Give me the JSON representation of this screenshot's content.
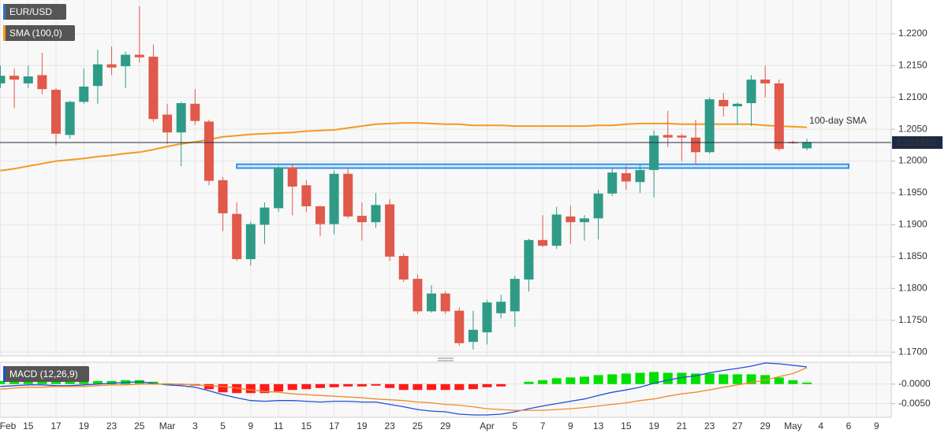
{
  "chart_data": [
    {
      "type": "candlestick",
      "title": "EUR/USD",
      "title_color": "#2f6fd6",
      "categories": [
        "Feb",
        null,
        "15",
        null,
        "17",
        null,
        "19",
        null,
        "23",
        null,
        "25",
        null,
        "Mar",
        null,
        "3",
        null,
        "5",
        null,
        "9",
        null,
        "11",
        null,
        "15",
        null,
        "17",
        null,
        "19",
        null,
        "23",
        null,
        "25",
        null,
        "29",
        null,
        null,
        "Apr",
        null,
        "5",
        null,
        "7",
        null,
        "9",
        null,
        "13",
        null,
        "15",
        null,
        "19",
        null,
        "21",
        null,
        "23",
        null,
        "27",
        null,
        "29",
        null,
        "May",
        null,
        "4",
        null,
        "6",
        null,
        "9"
      ],
      "open": [
        1.2122,
        1.2134,
        1.2122,
        1.2135,
        1.2112,
        1.2041,
        1.2093,
        1.2118,
        1.2152,
        1.2149,
        1.2167,
        1.2164,
        1.2073,
        1.2045,
        1.209,
        1.2062,
        1.197,
        1.1917,
        1.1846,
        1.19,
        1.1926,
        1.199,
        1.1962,
        1.1929,
        1.1901,
        1.198,
        1.1914,
        1.1904,
        1.1932,
        1.1851,
        1.1815,
        1.1764,
        1.1792,
        1.1765,
        1.1716,
        1.1731,
        1.1761,
        1.1764,
        1.1814,
        1.1876,
        1.1867,
        1.1913,
        1.1904,
        1.191,
        1.1949,
        1.1981,
        1.1967,
        1.1986,
        1.2041,
        1.204,
        1.2037,
        1.2014,
        1.2096,
        1.2086,
        1.2091,
        1.2128,
        1.2122,
        1.203,
        1.202,
        null,
        null,
        null,
        null,
        null
      ],
      "high": [
        1.215,
        1.2145,
        1.215,
        1.217,
        1.2115,
        1.2095,
        1.2145,
        1.2175,
        1.218,
        1.2172,
        1.2243,
        1.2183,
        1.209,
        1.2093,
        1.2113,
        1.2065,
        1.1975,
        1.1935,
        1.1905,
        1.1935,
        1.1992,
        1.1995,
        1.197,
        1.193,
        1.1985,
        1.199,
        1.1935,
        1.195,
        1.194,
        1.1855,
        1.1822,
        1.1805,
        1.1795,
        1.177,
        1.1765,
        1.1782,
        1.179,
        1.182,
        1.1878,
        1.1915,
        1.1928,
        1.193,
        1.1915,
        1.1955,
        1.199,
        1.1993,
        1.1995,
        1.2048,
        1.2079,
        1.2043,
        1.2065,
        1.21,
        1.2107,
        1.2092,
        1.2135,
        1.215,
        1.2128,
        1.2032,
        1.2035,
        null,
        null,
        null,
        null,
        null
      ],
      "low": [
        1.2115,
        1.2083,
        1.2115,
        1.2105,
        1.2025,
        1.2035,
        1.209,
        1.209,
        1.2135,
        1.2115,
        1.2155,
        1.2062,
        1.2027,
        1.1992,
        1.2057,
        1.1962,
        1.189,
        1.1843,
        1.1836,
        1.187,
        1.192,
        1.1915,
        1.192,
        1.1882,
        1.1885,
        1.191,
        1.1875,
        1.1895,
        1.1843,
        1.181,
        1.176,
        1.1762,
        1.176,
        1.171,
        1.1704,
        1.1712,
        1.1753,
        1.174,
        1.1795,
        1.1865,
        1.1862,
        1.187,
        1.1875,
        1.1877,
        1.1945,
        1.1955,
        1.195,
        1.1943,
        1.2022,
        1.2,
        1.1995,
        1.2012,
        1.207,
        1.2057,
        1.2055,
        1.21,
        1.2016,
        1.2027,
        1.2017,
        null,
        null,
        null,
        null,
        null
      ],
      "close": [
        1.2134,
        1.2128,
        1.2133,
        1.2113,
        1.2043,
        1.2093,
        1.2117,
        1.2152,
        1.2147,
        1.2167,
        1.2163,
        1.2066,
        1.2045,
        1.2091,
        1.2063,
        1.1969,
        1.1918,
        1.1846,
        1.1901,
        1.1927,
        1.199,
        1.196,
        1.1929,
        1.1901,
        1.198,
        1.1913,
        1.1904,
        1.1931,
        1.185,
        1.1814,
        1.1764,
        1.1792,
        1.1764,
        1.1714,
        1.1735,
        1.1778,
        1.1779,
        1.1815,
        1.1876,
        1.1867,
        1.1916,
        1.1904,
        1.191,
        1.1949,
        1.1982,
        1.1968,
        1.1986,
        1.204,
        1.2037,
        1.2037,
        1.2014,
        1.2097,
        1.2086,
        1.209,
        1.2128,
        1.2122,
        1.2019,
        1.2028,
        1.203,
        null,
        null,
        null,
        null,
        null
      ],
      "up_color": "#2f9b86",
      "down_color": "#e0594a",
      "series": [
        {
          "name": "SMA (100,0)",
          "color": "#f39a1e",
          "values": [
            1.1985,
            1.1988,
            1.1992,
            1.1996,
            1.2,
            1.2002,
            1.2004,
            1.2007,
            1.2009,
            1.2012,
            1.2014,
            1.2018,
            1.2023,
            1.2027,
            1.203,
            1.2034,
            1.2038,
            1.204,
            1.2042,
            1.2043,
            1.2044,
            1.2045,
            1.2047,
            1.2048,
            1.2049,
            1.2052,
            1.2055,
            1.2058,
            1.2059,
            1.206,
            1.206,
            1.2059,
            1.2058,
            1.2058,
            1.2056,
            1.2056,
            1.2056,
            1.2055,
            1.2055,
            1.2055,
            1.2055,
            1.2055,
            1.2055,
            1.2056,
            1.2056,
            1.2058,
            1.2059,
            1.2059,
            1.2059,
            1.2058,
            1.2058,
            1.2058,
            1.2058,
            1.2058,
            1.2058,
            1.2056,
            1.2055,
            1.2054,
            1.2053,
            null,
            null,
            null,
            null,
            null
          ]
        }
      ],
      "annotation": "100-day SMA",
      "last_price": {
        "value": 1.20291,
        "label": "1.202910"
      },
      "zone": {
        "y": [
          1.1989,
          1.1995
        ],
        "x": [
          17,
          61
        ],
        "color": "#2b8ff0"
      },
      "ylim": [
        1.1694,
        1.2253
      ],
      "yticks": [
        {
          "value": 1.17,
          "label": "1.1700"
        },
        {
          "value": 1.175,
          "label": "1.1750"
        },
        {
          "value": 1.18,
          "label": "1.1800"
        },
        {
          "value": 1.185,
          "label": "1.1850"
        },
        {
          "value": 1.19,
          "label": "1.1900"
        },
        {
          "value": 1.195,
          "label": "1.1950"
        },
        {
          "value": 1.2,
          "label": "1.2000"
        },
        {
          "value": 1.205,
          "label": "1.2050"
        },
        {
          "value": 1.21,
          "label": "1.2100"
        },
        {
          "value": 1.215,
          "label": "1.2150"
        },
        {
          "value": 1.22,
          "label": "1.2200"
        }
      ],
      "grid": true
    },
    {
      "type": "macd",
      "title": "MACD (12,26,9)",
      "histogram": [
        0.0008,
        0.0008,
        0.0008,
        0.0008,
        0.0008,
        0.0008,
        0.0008,
        0.0008,
        0.0008,
        0.001,
        0.001,
        0.0006,
        0.0002,
        -0.0002,
        -0.0004,
        -0.0013,
        -0.0021,
        -0.0023,
        -0.0023,
        -0.0023,
        -0.0019,
        -0.0015,
        -0.0013,
        -0.001,
        -0.0008,
        -0.0006,
        -0.0006,
        -0.0004,
        -0.001,
        -0.0015,
        -0.0015,
        -0.0015,
        -0.0015,
        -0.0015,
        -0.0013,
        -0.0008,
        -0.0006,
        0,
        0.0006,
        0.001,
        0.0015,
        0.0017,
        0.0019,
        0.0023,
        0.0025,
        0.0027,
        0.0029,
        0.0031,
        0.0029,
        0.0029,
        0.0027,
        0.0027,
        0.0025,
        0.0025,
        0.0025,
        0.0023,
        0.0017,
        0.001,
        0.0004,
        null,
        null,
        null,
        null,
        null
      ],
      "up_color": "#00e000",
      "down_color": "#ff1a1a",
      "lines": [
        {
          "color": "#1f4fd8",
          "values": [
            -0.0006,
            -0.0004,
            -0.0002,
            -0.0002,
            -0.0004,
            -0.0004,
            -0.0002,
            0,
            0.0002,
            0.0004,
            0.0006,
            0.0002,
            -0.0002,
            -0.0004,
            -0.0008,
            -0.0017,
            -0.0027,
            -0.0035,
            -0.0042,
            -0.0044,
            -0.0042,
            -0.0042,
            -0.0044,
            -0.0046,
            -0.0044,
            -0.0044,
            -0.0046,
            -0.0046,
            -0.0052,
            -0.0058,
            -0.0065,
            -0.0069,
            -0.0071,
            -0.0077,
            -0.0079,
            -0.0079,
            -0.0077,
            -0.0071,
            -0.0063,
            -0.0056,
            -0.005,
            -0.0044,
            -0.0038,
            -0.0029,
            -0.0021,
            -0.0015,
            -0.0008,
            0.0002,
            0.001,
            0.0017,
            0.0021,
            0.0029,
            0.0035,
            0.004,
            0.0046,
            0.0054,
            0.0052,
            0.0048,
            0.0044,
            null,
            null,
            null,
            null,
            null
          ]
        },
        {
          "color": "#f08a2a",
          "values": [
            -0.0013,
            -0.001,
            -0.0008,
            -0.0008,
            -0.0006,
            -0.0006,
            -0.0006,
            -0.0004,
            -0.0002,
            -0.0002,
            0,
            0,
            0,
            0,
            -0.0002,
            -0.0004,
            -0.0006,
            -0.001,
            -0.0015,
            -0.0019,
            -0.0021,
            -0.0025,
            -0.0027,
            -0.0029,
            -0.0031,
            -0.0033,
            -0.0035,
            -0.0038,
            -0.004,
            -0.0042,
            -0.0046,
            -0.0048,
            -0.0052,
            -0.0054,
            -0.0058,
            -0.0063,
            -0.0065,
            -0.0067,
            -0.0067,
            -0.0067,
            -0.0065,
            -0.0063,
            -0.006,
            -0.0056,
            -0.0052,
            -0.0048,
            -0.0042,
            -0.0038,
            -0.0031,
            -0.0025,
            -0.0021,
            -0.0015,
            -0.0008,
            -0.0002,
            0.0004,
            0.001,
            0.0019,
            0.0027,
            0.0042,
            null,
            null,
            null,
            null,
            null
          ]
        }
      ],
      "ylim": [
        -0.0085,
        0.0056
      ],
      "yticks": [
        {
          "value": 0,
          "label": "-0.0000"
        },
        {
          "value": -0.005,
          "label": "-0.0050"
        }
      ],
      "grid": true
    }
  ]
}
